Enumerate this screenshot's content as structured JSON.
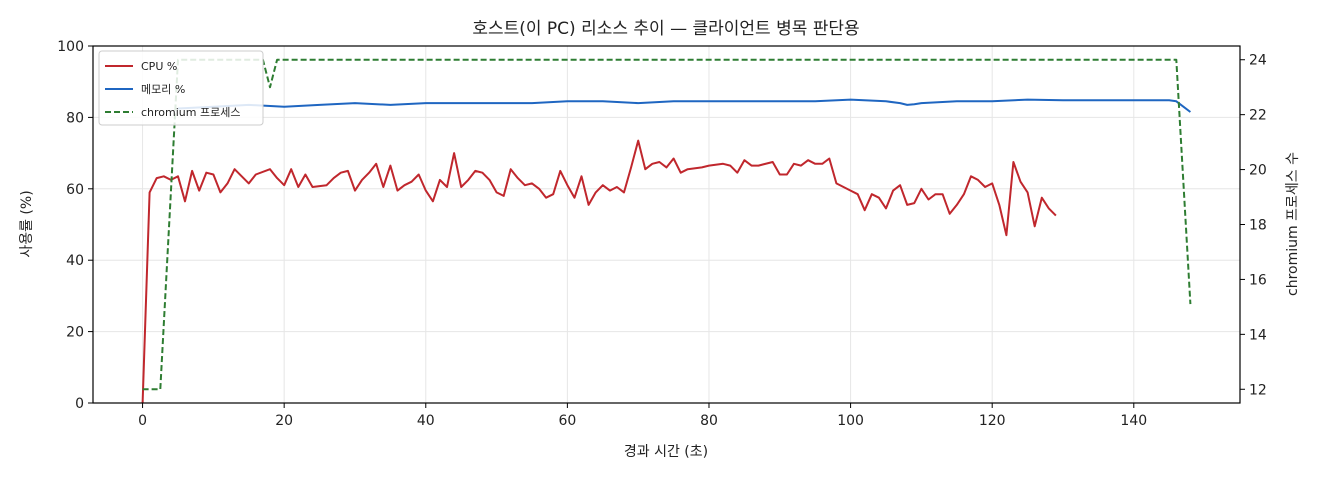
{
  "chart_data": {
    "type": "line",
    "title": "호스트(이 PC) 리소스 추이 — 클라이언트 병목 판단용",
    "xlabel": "경과 시간 (초)",
    "ylabel": "사용률 (%)",
    "y2label": "chromium 프로세스 수",
    "xlim": [
      -7,
      155
    ],
    "ylim": [
      0,
      100
    ],
    "y2lim": [
      11.5,
      24.5
    ],
    "x_ticks": [
      0,
      20,
      40,
      60,
      80,
      100,
      120,
      140
    ],
    "y_ticks": [
      0,
      20,
      40,
      60,
      80,
      100
    ],
    "y2_ticks": [
      12,
      14,
      16,
      18,
      20,
      22,
      24
    ],
    "grid": true,
    "legend_position": "top-left",
    "series": [
      {
        "name": "CPU %",
        "axis": "left",
        "color": "#c0272d",
        "style": "solid",
        "points": [
          [
            0,
            0
          ],
          [
            1,
            59
          ],
          [
            2,
            63
          ],
          [
            3,
            63.5
          ],
          [
            4,
            62.5
          ],
          [
            5,
            63.5
          ],
          [
            6,
            56.5
          ],
          [
            7,
            65
          ],
          [
            8,
            59.5
          ],
          [
            9,
            64.5
          ],
          [
            10,
            64
          ],
          [
            11,
            59
          ],
          [
            12,
            61.5
          ],
          [
            13,
            65.5
          ],
          [
            14,
            63.5
          ],
          [
            15,
            61.5
          ],
          [
            16,
            64
          ],
          [
            18,
            65.5
          ],
          [
            19,
            63
          ],
          [
            20,
            61
          ],
          [
            21,
            65.5
          ],
          [
            22,
            60.5
          ],
          [
            23,
            64
          ],
          [
            24,
            60.5
          ],
          [
            26,
            61
          ],
          [
            27,
            63
          ],
          [
            28,
            64.5
          ],
          [
            29,
            65
          ],
          [
            30,
            59.5
          ],
          [
            31,
            62.5
          ],
          [
            32,
            64.5
          ],
          [
            33,
            67
          ],
          [
            34,
            60.5
          ],
          [
            35,
            66.5
          ],
          [
            36,
            59.5
          ],
          [
            37,
            61
          ],
          [
            38,
            62
          ],
          [
            39,
            64
          ],
          [
            40,
            59.5
          ],
          [
            41,
            56.5
          ],
          [
            42,
            62.5
          ],
          [
            43,
            60.5
          ],
          [
            44,
            70
          ],
          [
            45,
            60.5
          ],
          [
            46,
            62.5
          ],
          [
            47,
            65
          ],
          [
            48,
            64.5
          ],
          [
            49,
            62.5
          ],
          [
            50,
            59
          ],
          [
            51,
            58
          ],
          [
            52,
            65.5
          ],
          [
            53,
            63
          ],
          [
            54,
            61
          ],
          [
            55,
            61.5
          ],
          [
            56,
            60
          ],
          [
            57,
            57.5
          ],
          [
            58,
            58.5
          ],
          [
            59,
            65
          ],
          [
            60,
            61
          ],
          [
            61,
            57.5
          ],
          [
            62,
            63.5
          ],
          [
            63,
            55.5
          ],
          [
            64,
            59
          ],
          [
            65,
            61
          ],
          [
            66,
            59.5
          ],
          [
            67,
            60.5
          ],
          [
            68,
            59
          ],
          [
            69,
            66
          ],
          [
            70,
            73.5
          ],
          [
            71,
            65.5
          ],
          [
            72,
            67
          ],
          [
            73,
            67.5
          ],
          [
            74,
            66
          ],
          [
            75,
            68.5
          ],
          [
            76,
            64.5
          ],
          [
            77,
            65.5
          ],
          [
            79,
            66
          ],
          [
            80,
            66.5
          ],
          [
            82,
            67
          ],
          [
            83,
            66.5
          ],
          [
            84,
            64.5
          ],
          [
            85,
            68
          ],
          [
            86,
            66.5
          ],
          [
            87,
            66.5
          ],
          [
            89,
            67.5
          ],
          [
            90,
            64
          ],
          [
            91,
            64
          ],
          [
            92,
            67
          ],
          [
            93,
            66.5
          ],
          [
            94,
            68
          ],
          [
            95,
            67
          ],
          [
            96,
            67
          ],
          [
            97,
            68.5
          ],
          [
            98,
            61.5
          ],
          [
            99,
            60.5
          ],
          [
            100,
            59.5
          ],
          [
            101,
            58.5
          ],
          [
            102,
            54
          ],
          [
            103,
            58.5
          ],
          [
            104,
            57.5
          ],
          [
            105,
            54.5
          ],
          [
            106,
            59.5
          ],
          [
            107,
            61
          ],
          [
            108,
            55.5
          ],
          [
            109,
            56
          ],
          [
            110,
            60
          ],
          [
            111,
            57
          ],
          [
            112,
            58.5
          ],
          [
            113,
            58.5
          ],
          [
            114,
            53
          ],
          [
            115,
            55.5
          ],
          [
            116,
            58.5
          ],
          [
            117,
            63.5
          ],
          [
            118,
            62.5
          ],
          [
            119,
            60.5
          ],
          [
            120,
            61.5
          ],
          [
            121,
            55.5
          ],
          [
            122,
            47
          ],
          [
            123,
            67.5
          ],
          [
            124,
            62
          ],
          [
            125,
            59
          ],
          [
            126,
            49.5
          ],
          [
            127,
            57.5
          ],
          [
            128,
            54.5
          ],
          [
            129,
            52.5
          ]
        ]
      },
      {
        "name": "메모리 %",
        "axis": "left",
        "color": "#1f66c1",
        "style": "solid",
        "points": [
          [
            5,
            82.5
          ],
          [
            10,
            83
          ],
          [
            15,
            83.5
          ],
          [
            20,
            83
          ],
          [
            25,
            83.5
          ],
          [
            30,
            84
          ],
          [
            35,
            83.5
          ],
          [
            40,
            84
          ],
          [
            45,
            84
          ],
          [
            50,
            84
          ],
          [
            55,
            84
          ],
          [
            60,
            84.5
          ],
          [
            65,
            84.5
          ],
          [
            70,
            84
          ],
          [
            75,
            84.5
          ],
          [
            80,
            84.5
          ],
          [
            85,
            84.5
          ],
          [
            90,
            84.5
          ],
          [
            95,
            84.5
          ],
          [
            100,
            85
          ],
          [
            105,
            84.5
          ],
          [
            107,
            84
          ],
          [
            108,
            83.5
          ],
          [
            109,
            83.7
          ],
          [
            110,
            84
          ],
          [
            115,
            84.5
          ],
          [
            120,
            84.5
          ],
          [
            125,
            85
          ],
          [
            130,
            84.8
          ],
          [
            135,
            84.8
          ],
          [
            140,
            84.8
          ],
          [
            145,
            84.8
          ],
          [
            146,
            84.5
          ],
          [
            147,
            83
          ],
          [
            148,
            81.5
          ]
        ]
      },
      {
        "name": "chromium 프로세스",
        "axis": "right",
        "color": "#2e7d32",
        "style": "dashed",
        "points": [
          [
            0,
            12
          ],
          [
            2.5,
            12
          ],
          [
            5,
            24
          ],
          [
            17,
            24
          ],
          [
            18,
            23
          ],
          [
            19,
            24
          ],
          [
            146,
            24
          ],
          [
            148,
            15.1
          ]
        ]
      }
    ]
  }
}
